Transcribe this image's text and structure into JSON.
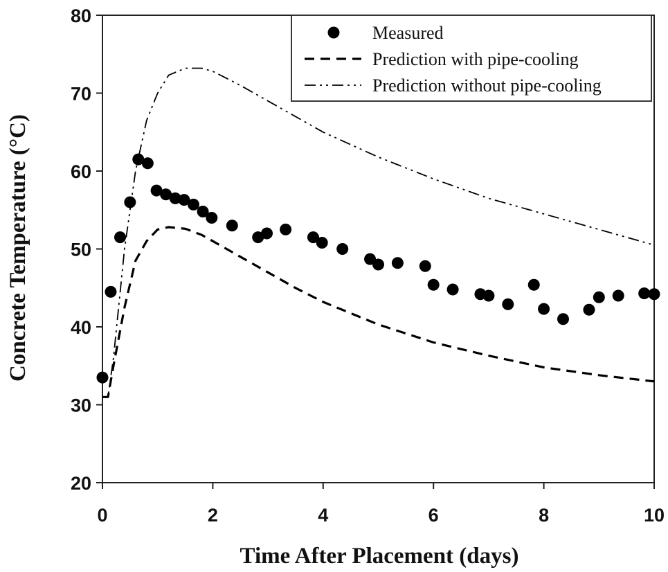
{
  "chart_data": {
    "type": "line",
    "xlabel": "Time After Placement (days)",
    "ylabel": "Concrete Temperature (°C)",
    "xlim": [
      0,
      10
    ],
    "ylim": [
      20,
      80
    ],
    "xticks": [
      0,
      2,
      4,
      6,
      8,
      10
    ],
    "yticks": [
      20,
      30,
      40,
      50,
      60,
      70,
      80
    ],
    "legend_position": "top-right",
    "grid": false,
    "series": [
      {
        "name": "Measured",
        "style": "markers",
        "color": "#000000",
        "x": [
          0.0,
          0.15,
          0.32,
          0.5,
          0.65,
          0.82,
          0.98,
          1.15,
          1.32,
          1.48,
          1.65,
          1.82,
          1.98,
          2.35,
          2.82,
          2.98,
          3.32,
          3.82,
          3.98,
          4.35,
          4.85,
          5.0,
          5.35,
          5.85,
          6.0,
          6.35,
          6.85,
          7.0,
          7.35,
          7.82,
          8.0,
          8.35,
          8.82,
          9.0,
          9.35,
          9.82,
          10.0
        ],
        "y": [
          33.5,
          44.5,
          51.5,
          56.0,
          61.5,
          61.0,
          57.5,
          57.0,
          56.5,
          56.3,
          55.7,
          54.8,
          54.0,
          53.0,
          51.5,
          52.0,
          52.5,
          51.5,
          50.8,
          50.0,
          48.7,
          48.0,
          48.2,
          47.8,
          45.4,
          44.8,
          44.2,
          44.0,
          42.9,
          45.4,
          42.3,
          41.0,
          42.2,
          43.8,
          44.0,
          44.3,
          44.2
        ]
      },
      {
        "name": "Prediction with pipe-cooling",
        "style": "dashed",
        "color": "#000000",
        "x": [
          0.0,
          0.1,
          0.2,
          0.4,
          0.6,
          0.8,
          1.0,
          1.2,
          1.5,
          1.8,
          2.0,
          2.5,
          3.0,
          3.5,
          4.0,
          5.0,
          6.0,
          7.0,
          8.0,
          9.0,
          10.0
        ],
        "y": [
          31.0,
          31.0,
          35.0,
          42.5,
          48.5,
          51.0,
          52.5,
          52.8,
          52.6,
          51.8,
          51.0,
          49.0,
          47.0,
          45.0,
          43.2,
          40.3,
          38.0,
          36.3,
          34.8,
          33.8,
          33.0
        ]
      },
      {
        "name": "Prediction without pipe-cooling",
        "style": "dash-dot-dot",
        "color": "#000000",
        "x": [
          0.0,
          0.1,
          0.2,
          0.4,
          0.6,
          0.8,
          1.0,
          1.2,
          1.5,
          1.8,
          2.0,
          2.5,
          3.0,
          3.5,
          4.0,
          5.0,
          6.0,
          7.0,
          8.0,
          9.0,
          10.0
        ],
        "y": [
          31.0,
          31.0,
          36.0,
          50.0,
          60.0,
          66.5,
          70.0,
          72.3,
          73.2,
          73.2,
          72.8,
          71.0,
          69.0,
          67.0,
          65.0,
          61.8,
          59.0,
          56.5,
          54.5,
          52.5,
          50.5
        ]
      }
    ]
  }
}
